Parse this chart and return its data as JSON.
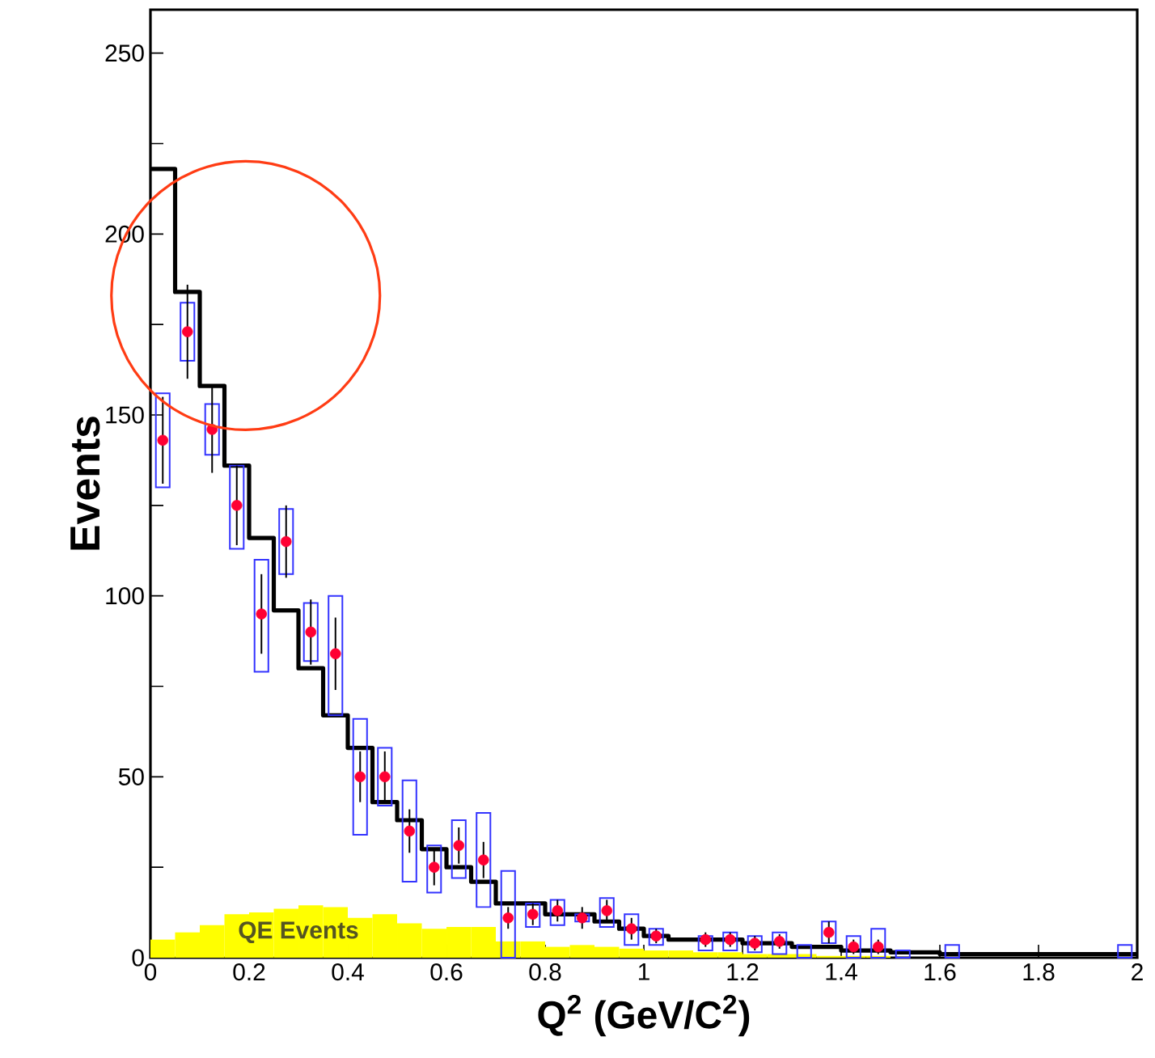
{
  "chart_data": {
    "type": "histogram",
    "xlabel": "Q$^{2}$ (GeV/C$^{2}$)",
    "ylabel": "Events",
    "bins": [
      0,
      0.05,
      0.1,
      0.15,
      0.2,
      0.25,
      0.3,
      0.35,
      0.4,
      0.45,
      0.5,
      0.55,
      0.6,
      0.65,
      0.7,
      0.75,
      0.8,
      0.85,
      0.9,
      0.95,
      1.0,
      1.05,
      1.1,
      1.15,
      1.2,
      1.25,
      1.3,
      1.35,
      1.4,
      1.45,
      1.5,
      1.55,
      1.6,
      1.65,
      1.7,
      1.75,
      1.8,
      1.85,
      1.9,
      1.95,
      2.0
    ],
    "series": [
      {
        "color": "#ffff00",
        "values": [
          5,
          7,
          9,
          12,
          12.5,
          13.5,
          14.5,
          14,
          11,
          12,
          9.5,
          8,
          8.5,
          8.5,
          4.5,
          4.5,
          3,
          3.5,
          3,
          2.5,
          2,
          2,
          1.5,
          1.5,
          1,
          1,
          1,
          0.5,
          0.5,
          0.5,
          0,
          0,
          0,
          0,
          0,
          0,
          0,
          0,
          0,
          0
        ]
      },
      {
        "type": "step",
        "color": "#000000",
        "marker": "none",
        "x": [
          0,
          0.05,
          0.1,
          0.15,
          0.2,
          0.25,
          0.3,
          0.35,
          0.4,
          0.45,
          0.5,
          0.55,
          0.6,
          0.65,
          0.7,
          0.75,
          0.8,
          0.85,
          0.9,
          0.95,
          1.0,
          1.05,
          1.1,
          1.15,
          1.2,
          1.25,
          1.3,
          1.35,
          1.4,
          1.45,
          1.5,
          1.55,
          1.6,
          1.65,
          1.7,
          1.75,
          1.8,
          1.85,
          1.9,
          1.95,
          2.0
        ],
        "values": [
          218,
          184,
          158,
          136,
          116,
          96,
          80,
          67,
          58,
          43,
          38,
          30,
          25,
          21,
          15,
          15,
          12,
          12,
          10,
          8,
          6,
          5,
          5,
          5,
          4,
          4,
          3,
          3,
          2,
          2,
          1.5,
          1.5,
          1,
          1,
          1,
          1,
          1,
          1,
          1,
          1,
          1
        ]
      },
      {
        "type": "bar",
        "color": "#3333ff",
        "x": [
          0.025,
          0.075,
          0.125,
          0.175,
          0.225,
          0.275,
          0.325,
          0.375,
          0.425,
          0.475,
          0.525,
          0.575,
          0.625,
          0.675,
          0.725,
          0.775,
          0.825,
          0.875,
          0.925,
          0.975,
          1.025,
          1.125,
          1.175,
          1.225,
          1.275,
          1.325,
          1.375,
          1.425,
          1.475,
          1.525,
          1.625,
          1.975
        ],
        "base": [
          130,
          165,
          139,
          113,
          79,
          106,
          82,
          67,
          34,
          42,
          21,
          18,
          22,
          14,
          0,
          8.5,
          9,
          10,
          8.5,
          3.5,
          3.5,
          2,
          2,
          1.5,
          1,
          0,
          4,
          0,
          0,
          0,
          0,
          0
        ],
        "values": [
          26,
          16,
          14,
          23,
          31,
          18,
          16,
          33,
          32,
          16,
          28,
          13,
          16,
          26,
          24,
          6.5,
          7,
          2,
          8,
          8.5,
          4.5,
          4,
          5,
          4.5,
          6,
          3.5,
          6,
          6,
          8,
          2,
          3.5,
          3.5
        ]
      },
      {
        "type": "scatter",
        "color": "#ff0033",
        "x": [
          0.025,
          0.075,
          0.125,
          0.175,
          0.225,
          0.275,
          0.325,
          0.375,
          0.425,
          0.475,
          0.525,
          0.575,
          0.625,
          0.675,
          0.725,
          0.775,
          0.825,
          0.875,
          0.925,
          0.975,
          1.025,
          1.125,
          1.175,
          1.225,
          1.275,
          1.375,
          1.425,
          1.475
        ],
        "values": [
          143,
          173,
          146,
          125,
          95,
          115,
          90,
          84,
          50,
          50,
          35,
          25,
          31,
          27,
          11,
          12,
          13,
          11,
          13,
          8,
          6,
          5,
          5,
          4,
          4.5,
          7,
          3,
          3
        ],
        "errors": [
          12,
          13,
          12,
          11,
          11,
          10,
          9,
          10,
          7,
          7,
          6,
          5,
          5,
          5,
          3,
          3,
          3,
          3,
          3,
          3,
          2,
          2,
          2,
          2,
          2,
          3,
          2,
          2
        ]
      }
    ],
    "annotations": [
      {
        "text": "QE Events",
        "x": 0.3,
        "y": 7
      }
    ],
    "xlim": [
      0,
      2
    ],
    "ylim": [
      0,
      262
    ],
    "xticks": [
      0,
      0.2,
      0.4,
      0.6,
      0.8,
      1,
      1.2,
      1.4,
      1.6,
      1.8,
      2
    ],
    "yticks": [
      0,
      {
        "value": 25,
        "label": null
      },
      50,
      {
        "value": 75,
        "label": null
      },
      100,
      {
        "value": 125,
        "label": null
      },
      150,
      {
        "value": 175,
        "label": null
      },
      200,
      {
        "value": 225,
        "label": null
      },
      250
    ],
    "marker": "circle",
    "grid": false
  }
}
